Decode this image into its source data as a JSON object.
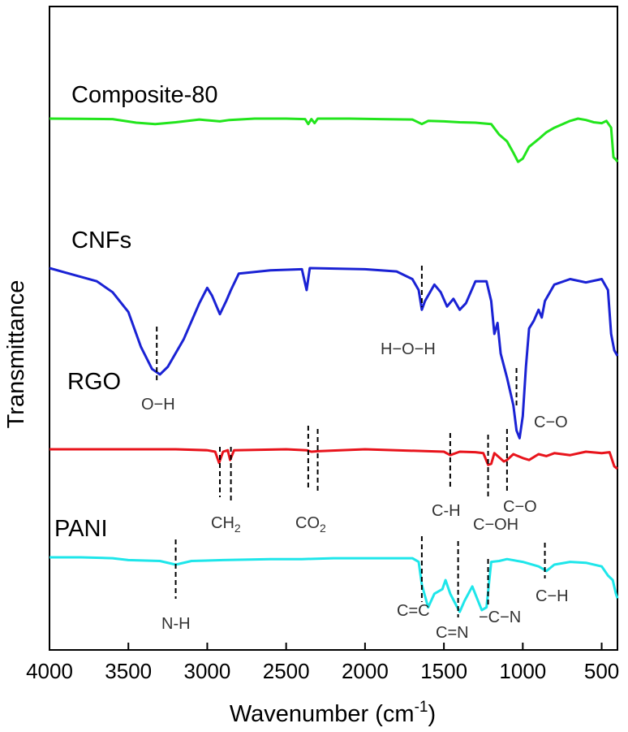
{
  "chart_data": {
    "type": "line",
    "title": "",
    "xlabel_main": "Wavenumber (cm",
    "xlabel_sup": "-1",
    "xlabel_tail": ")",
    "ylabel": "Transmittance",
    "xlim": [
      4000,
      400
    ],
    "x_reversed": true,
    "ticks": [
      "4000",
      "3500",
      "3000",
      "2500",
      "2000",
      "1500",
      "1000",
      "500"
    ],
    "y_ticks_shown": false,
    "grid": false,
    "legend": "none",
    "series": [
      {
        "name": "Composite-80",
        "color": "#22e51c",
        "points": [
          [
            4000,
            0.0
          ],
          [
            3800,
            0.005
          ],
          [
            3600,
            0.01
          ],
          [
            3450,
            0.09
          ],
          [
            3330,
            0.12
          ],
          [
            3200,
            0.08
          ],
          [
            3050,
            0.02
          ],
          [
            2920,
            0.06
          ],
          [
            2860,
            0.03
          ],
          [
            2700,
            0.0
          ],
          [
            2500,
            0.0
          ],
          [
            2380,
            0.01
          ],
          [
            2360,
            0.12
          ],
          [
            2340,
            0.01
          ],
          [
            2320,
            0.1
          ],
          [
            2300,
            0.0
          ],
          [
            2100,
            0.0
          ],
          [
            1900,
            0.01
          ],
          [
            1700,
            0.02
          ],
          [
            1640,
            0.12
          ],
          [
            1600,
            0.05
          ],
          [
            1500,
            0.06
          ],
          [
            1400,
            0.08
          ],
          [
            1300,
            0.09
          ],
          [
            1200,
            0.12
          ],
          [
            1150,
            0.35
          ],
          [
            1100,
            0.5
          ],
          [
            1060,
            0.75
          ],
          [
            1030,
            0.95
          ],
          [
            1000,
            0.88
          ],
          [
            960,
            0.62
          ],
          [
            900,
            0.45
          ],
          [
            850,
            0.3
          ],
          [
            800,
            0.2
          ],
          [
            700,
            0.05
          ],
          [
            650,
            0.0
          ],
          [
            600,
            0.03
          ],
          [
            550,
            0.08
          ],
          [
            500,
            0.1
          ],
          [
            470,
            0.05
          ],
          [
            440,
            0.2
          ],
          [
            425,
            0.85
          ],
          [
            410,
            0.9
          ],
          [
            400,
            0.95
          ]
        ]
      },
      {
        "name": "CNFs",
        "color": "#1a22d4",
        "points": [
          [
            4000,
            0.0
          ],
          [
            3900,
            0.04
          ],
          [
            3800,
            0.08
          ],
          [
            3700,
            0.12
          ],
          [
            3600,
            0.22
          ],
          [
            3500,
            0.4
          ],
          [
            3420,
            0.72
          ],
          [
            3350,
            0.92
          ],
          [
            3300,
            0.97
          ],
          [
            3250,
            0.9
          ],
          [
            3150,
            0.65
          ],
          [
            3050,
            0.32
          ],
          [
            3000,
            0.18
          ],
          [
            2970,
            0.25
          ],
          [
            2920,
            0.42
          ],
          [
            2880,
            0.3
          ],
          [
            2850,
            0.2
          ],
          [
            2800,
            0.05
          ],
          [
            2600,
            0.02
          ],
          [
            2400,
            0.01
          ],
          [
            2370,
            0.2
          ],
          [
            2350,
            0.0
          ],
          [
            2000,
            0.01
          ],
          [
            1800,
            0.03
          ],
          [
            1700,
            0.1
          ],
          [
            1660,
            0.2
          ],
          [
            1640,
            0.38
          ],
          [
            1620,
            0.3
          ],
          [
            1560,
            0.15
          ],
          [
            1520,
            0.22
          ],
          [
            1480,
            0.35
          ],
          [
            1440,
            0.28
          ],
          [
            1400,
            0.38
          ],
          [
            1360,
            0.32
          ],
          [
            1300,
            0.12
          ],
          [
            1230,
            0.12
          ],
          [
            1200,
            0.3
          ],
          [
            1180,
            0.6
          ],
          [
            1160,
            0.5
          ],
          [
            1140,
            0.78
          ],
          [
            1100,
            1.0
          ],
          [
            1060,
            1.25
          ],
          [
            1040,
            1.48
          ],
          [
            1020,
            1.55
          ],
          [
            1000,
            1.35
          ],
          [
            980,
            0.9
          ],
          [
            960,
            0.55
          ],
          [
            930,
            0.48
          ],
          [
            900,
            0.38
          ],
          [
            880,
            0.45
          ],
          [
            860,
            0.3
          ],
          [
            800,
            0.15
          ],
          [
            700,
            0.1
          ],
          [
            600,
            0.13
          ],
          [
            500,
            0.1
          ],
          [
            460,
            0.2
          ],
          [
            440,
            0.6
          ],
          [
            420,
            0.75
          ],
          [
            400,
            0.8
          ]
        ]
      },
      {
        "name": "RGO",
        "color": "#e8141c",
        "points": [
          [
            4000,
            0.0
          ],
          [
            3500,
            0.0
          ],
          [
            3200,
            0.0
          ],
          [
            3000,
            0.02
          ],
          [
            2950,
            0.05
          ],
          [
            2925,
            0.28
          ],
          [
            2900,
            0.05
          ],
          [
            2870,
            0.02
          ],
          [
            2855,
            0.22
          ],
          [
            2830,
            0.02
          ],
          [
            2500,
            0.0
          ],
          [
            2370,
            0.02
          ],
          [
            2340,
            0.05
          ],
          [
            2300,
            0.04
          ],
          [
            2000,
            0.0
          ],
          [
            1800,
            0.02
          ],
          [
            1600,
            0.04
          ],
          [
            1500,
            0.05
          ],
          [
            1460,
            0.12
          ],
          [
            1400,
            0.05
          ],
          [
            1300,
            0.06
          ],
          [
            1250,
            0.08
          ],
          [
            1220,
            0.32
          ],
          [
            1200,
            0.3
          ],
          [
            1180,
            0.08
          ],
          [
            1120,
            0.25
          ],
          [
            1100,
            0.22
          ],
          [
            1060,
            0.1
          ],
          [
            1000,
            0.18
          ],
          [
            960,
            0.22
          ],
          [
            900,
            0.1
          ],
          [
            850,
            0.14
          ],
          [
            800,
            0.08
          ],
          [
            700,
            0.12
          ],
          [
            600,
            0.05
          ],
          [
            500,
            0.08
          ],
          [
            450,
            0.06
          ],
          [
            420,
            0.35
          ],
          [
            400,
            0.4
          ]
        ]
      },
      {
        "name": "PANI",
        "color": "#1ee6ea",
        "points": [
          [
            4000,
            0.0
          ],
          [
            3800,
            0.0
          ],
          [
            3600,
            0.01
          ],
          [
            3500,
            0.03
          ],
          [
            3300,
            0.04
          ],
          [
            3200,
            0.08
          ],
          [
            3100,
            0.04
          ],
          [
            2900,
            0.03
          ],
          [
            2600,
            0.02
          ],
          [
            2400,
            0.02
          ],
          [
            2200,
            0.01
          ],
          [
            2000,
            0.01
          ],
          [
            1800,
            0.01
          ],
          [
            1700,
            0.01
          ],
          [
            1660,
            0.05
          ],
          [
            1640,
            0.3
          ],
          [
            1600,
            0.55
          ],
          [
            1560,
            0.4
          ],
          [
            1510,
            0.35
          ],
          [
            1490,
            0.25
          ],
          [
            1460,
            0.4
          ],
          [
            1430,
            0.5
          ],
          [
            1400,
            0.6
          ],
          [
            1370,
            0.48
          ],
          [
            1320,
            0.32
          ],
          [
            1290,
            0.45
          ],
          [
            1260,
            0.58
          ],
          [
            1230,
            0.55
          ],
          [
            1200,
            0.05
          ],
          [
            1150,
            0.04
          ],
          [
            1100,
            0.02
          ],
          [
            1000,
            0.05
          ],
          [
            900,
            0.1
          ],
          [
            850,
            0.15
          ],
          [
            800,
            0.08
          ],
          [
            700,
            0.05
          ],
          [
            600,
            0.06
          ],
          [
            500,
            0.1
          ],
          [
            460,
            0.2
          ],
          [
            430,
            0.25
          ],
          [
            410,
            0.4
          ],
          [
            400,
            0.45
          ]
        ]
      }
    ],
    "annotations": [
      {
        "text": "O−H",
        "wavenumber": 3320
      },
      {
        "text": "H−O−H",
        "wavenumber": 1640
      },
      {
        "text": "C−O",
        "wavenumber": 1040
      },
      {
        "text": "CH",
        "sub": "2",
        "wavenumber": 2880
      },
      {
        "text": "CO",
        "sub": "2",
        "wavenumber": 2340
      },
      {
        "text": "C-H",
        "wavenumber": 1460
      },
      {
        "text": "C−OH",
        "wavenumber": 1220
      },
      {
        "text": "C−O",
        "wavenumber": 1100
      },
      {
        "text": "N-H",
        "wavenumber": 3200
      },
      {
        "text": "C=C",
        "wavenumber": 1640
      },
      {
        "text": "C=N",
        "wavenumber": 1410
      },
      {
        "text": "−C−N",
        "wavenumber": 1220
      },
      {
        "text": "C−H",
        "wavenumber": 860
      }
    ]
  }
}
